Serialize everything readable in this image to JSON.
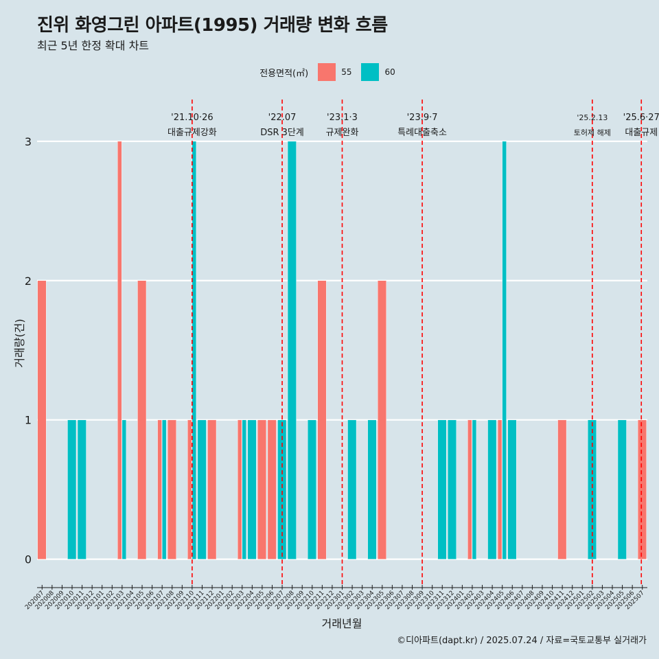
{
  "title": "진위 화영그린 아파트(1995) 거래량 변화 흐름",
  "subtitle": "최근 5년 한정 확대 차트",
  "caption": "©디아파트(dapt.kr) / 2025.07.24 / 자료=국토교통부 실거래가",
  "legend": {
    "title": "전용면적(㎡)",
    "items": [
      {
        "label": "55",
        "color": "#f8766d"
      },
      {
        "label": "60",
        "color": "#00bfc4"
      }
    ]
  },
  "chart_data": {
    "type": "bar",
    "title": "진위 화영그린 아파트(1995) 거래량 변화 흐름",
    "xlabel": "거래년월",
    "ylabel": "거래량(건)",
    "ylim": [
      -0.14,
      3.3
    ],
    "yticks": [
      0,
      1,
      2,
      3
    ],
    "categories": [
      "202007",
      "202008",
      "202009",
      "202010",
      "202011",
      "202012",
      "202101",
      "202102",
      "202103",
      "202104",
      "202105",
      "202106",
      "202107",
      "202108",
      "202109",
      "202110",
      "202111",
      "202112",
      "202201",
      "202202",
      "202203",
      "202204",
      "202205",
      "202206",
      "202207",
      "202208",
      "202209",
      "202210",
      "202211",
      "202212",
      "202301",
      "202302",
      "202303",
      "202304",
      "202305",
      "202306",
      "202307",
      "202308",
      "202309",
      "202310",
      "202311",
      "202312",
      "202401",
      "202402",
      "202403",
      "202404",
      "202405",
      "202406",
      "202407",
      "202408",
      "202409",
      "202410",
      "202411",
      "202412",
      "202501",
      "202502",
      "202503",
      "202504",
      "202505",
      "202506",
      "202507"
    ],
    "series": [
      {
        "name": "55",
        "color": "#f8766d",
        "values": [
          2,
          0,
          0,
          0,
          0,
          0,
          0,
          0,
          3,
          0,
          2,
          0,
          1,
          1,
          0,
          1,
          0,
          1,
          0,
          0,
          1,
          0,
          1,
          1,
          0,
          0,
          0,
          0,
          2,
          0,
          0,
          0,
          0,
          0,
          2,
          0,
          0,
          0,
          0,
          0,
          0,
          0,
          0,
          1,
          0,
          0,
          1,
          0,
          0,
          0,
          0,
          0,
          1,
          0,
          0,
          0,
          0,
          0,
          0,
          0,
          1
        ]
      },
      {
        "name": "60",
        "color": "#00bfc4",
        "values": [
          0,
          0,
          0,
          1,
          1,
          0,
          0,
          0,
          1,
          0,
          0,
          0,
          1,
          0,
          0,
          3,
          1,
          0,
          0,
          0,
          1,
          1,
          0,
          0,
          1,
          3,
          0,
          1,
          0,
          0,
          0,
          1,
          0,
          1,
          0,
          0,
          0,
          0,
          0,
          0,
          1,
          1,
          0,
          1,
          0,
          1,
          3,
          1,
          0,
          0,
          0,
          0,
          0,
          0,
          0,
          1,
          0,
          0,
          1,
          0,
          0
        ]
      }
    ],
    "events": [
      {
        "position": 15.0,
        "date": "'21.10·26",
        "label": "대출규제강화"
      },
      {
        "position": 24.0,
        "date": "'22.07",
        "label": "DSR 3단계"
      },
      {
        "position": 30.0,
        "date": "'23.1·3",
        "label": "규제완화"
      },
      {
        "position": 38.0,
        "date": "'23.9·7",
        "label": "특례대출축소"
      },
      {
        "position": 55.0,
        "date": "'25.2.13",
        "label": "토허제 해제"
      },
      {
        "position": 59.9,
        "date": "'25.6·27",
        "label": "대출규제"
      }
    ]
  }
}
